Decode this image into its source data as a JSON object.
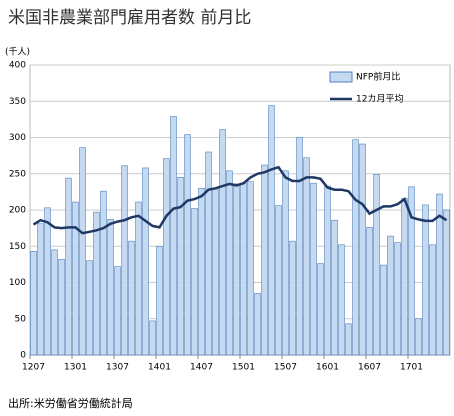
{
  "chart_data": {
    "type": "bar_line",
    "title": "米国非農業部門雇用者数 前月比",
    "y_label": "(千人)",
    "source": "出所:米労働省労働統計局",
    "categories": [
      "1207",
      null,
      null,
      null,
      null,
      null,
      "1301",
      null,
      null,
      null,
      null,
      null,
      "1307",
      null,
      null,
      null,
      null,
      null,
      "1401",
      null,
      null,
      null,
      null,
      null,
      "1407",
      null,
      null,
      null,
      null,
      null,
      "1501",
      null,
      null,
      null,
      null,
      null,
      "1507",
      null,
      null,
      null,
      null,
      null,
      "1601",
      null,
      null,
      null,
      null,
      null,
      "1607",
      null,
      null,
      null,
      null,
      null,
      "1701",
      null,
      null,
      null,
      null,
      null
    ],
    "series": [
      {
        "name": "NFP前月比",
        "kind": "bar",
        "color": "#c5d9f1",
        "values": [
          143,
          181,
          203,
          145,
          132,
          244,
          211,
          286,
          130,
          197,
          226,
          187,
          122,
          261,
          157,
          211,
          258,
          47,
          150,
          271,
          329,
          245,
          304,
          202,
          230,
          280,
          229,
          311,
          254,
          236,
          237,
          239,
          85,
          262,
          344,
          206,
          254,
          157,
          300,
          272,
          237,
          126,
          233,
          186,
          152,
          43,
          297,
          291,
          176,
          249,
          124,
          164,
          155,
          216,
          232,
          50,
          207,
          152,
          222,
          200
        ]
      },
      {
        "name": "12カ月平均",
        "kind": "line",
        "color": "#1f3864",
        "values": [
          180,
          186,
          183,
          176,
          175,
          176,
          176,
          168,
          170,
          172,
          175,
          181,
          184,
          186,
          190,
          192,
          185,
          178,
          176,
          192,
          202,
          204,
          213,
          215,
          219,
          228,
          230,
          233,
          236,
          234,
          237,
          245,
          250,
          252,
          256,
          259,
          245,
          240,
          240,
          245,
          245,
          243,
          231,
          228,
          228,
          226,
          214,
          208,
          195,
          200,
          205,
          205,
          208,
          215,
          190,
          187,
          185,
          185,
          192,
          186
        ]
      }
    ],
    "ylim": [
      0,
      400
    ],
    "yticks": [
      0,
      50,
      100,
      150,
      200,
      250,
      300,
      350,
      400
    ],
    "grid": true
  }
}
